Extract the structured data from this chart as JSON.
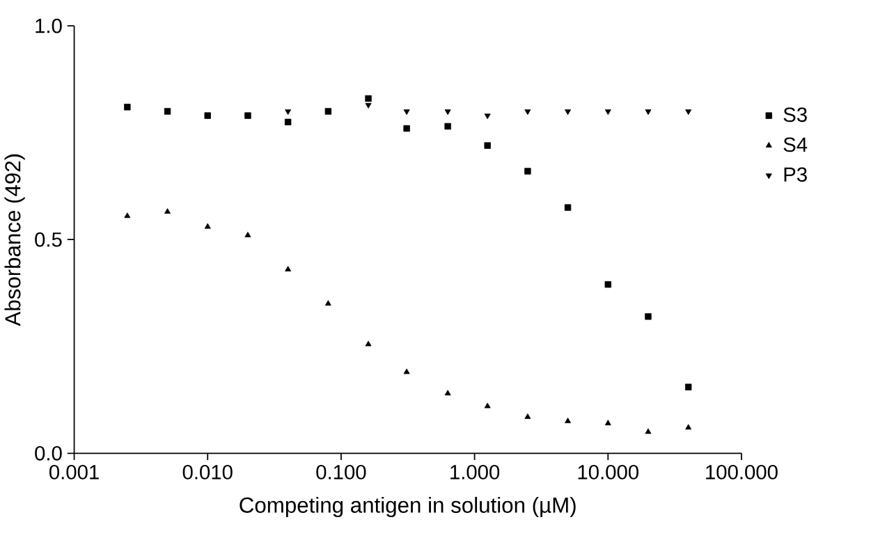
{
  "chart_data": {
    "type": "scatter",
    "xlabel": "Competing antigen in solution (µM)",
    "ylabel": "Absorbance (492)",
    "log": "x",
    "x": [
      0.0025,
      0.005,
      0.01,
      0.02,
      0.04,
      0.08,
      0.16,
      0.31,
      0.63,
      1.25,
      2.5,
      5,
      10,
      20,
      40
    ],
    "xlim": [
      0.001,
      100
    ],
    "xticks": [
      {
        "value": 0.001,
        "label": "0.001"
      },
      {
        "value": 0.01,
        "label": "0.010"
      },
      {
        "value": 0.1,
        "label": "0.100"
      },
      {
        "value": 1,
        "label": "1.000"
      },
      {
        "value": 10,
        "label": "10.000"
      },
      {
        "value": 100,
        "label": "100.000"
      }
    ],
    "ylim": [
      0,
      1
    ],
    "yticks": [
      {
        "value": 0,
        "label": "0.0"
      },
      {
        "value": 0.5,
        "label": "0.5"
      },
      {
        "value": 1,
        "label": "1.0"
      }
    ],
    "legend": "right",
    "grid": false,
    "series": [
      {
        "name": "S3",
        "color": "#000000",
        "marker": "square",
        "values": [
          0.81,
          0.8,
          0.79,
          0.79,
          0.775,
          0.8,
          0.83,
          0.76,
          0.765,
          0.72,
          0.66,
          0.575,
          0.395,
          0.32,
          0.155
        ]
      },
      {
        "name": "S4",
        "color": "#000000",
        "marker": "triangle",
        "values": [
          0.555,
          0.565,
          0.53,
          0.51,
          0.43,
          0.35,
          0.255,
          0.19,
          0.14,
          0.11,
          0.085,
          0.075,
          0.07,
          0.05,
          0.06
        ]
      },
      {
        "name": "P3",
        "color": "#000000",
        "marker": "triangle down",
        "values": [
          null,
          null,
          null,
          null,
          0.8,
          null,
          0.815,
          0.8,
          0.8,
          0.79,
          0.8,
          0.8,
          0.8,
          0.8,
          0.8
        ]
      }
    ]
  }
}
